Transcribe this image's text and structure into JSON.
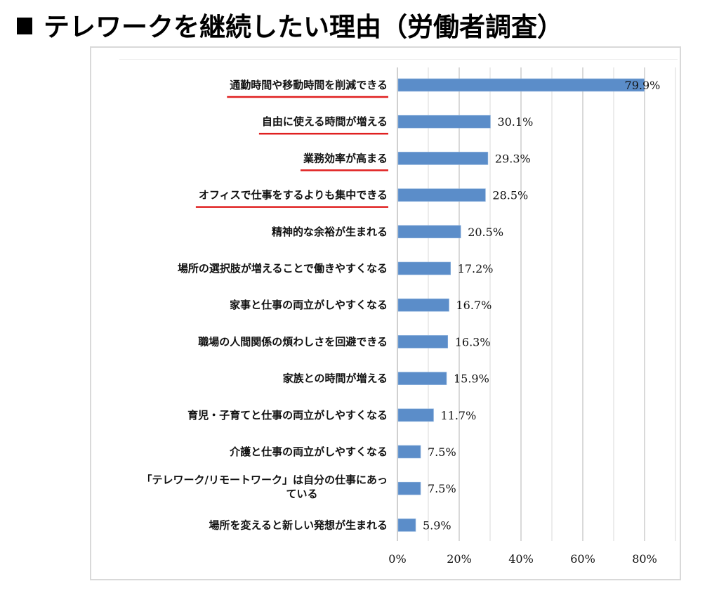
{
  "page": {
    "title": "テレワークを継続したい理由（労働者調査）"
  },
  "chart_data": {
    "type": "bar",
    "orientation": "horizontal",
    "title": "テレワークを継続したい理由（労働者調査）",
    "xlabel": "",
    "ylabel": "",
    "xlim": [
      0,
      90
    ],
    "x_ticks": [
      0,
      20,
      40,
      60,
      80
    ],
    "x_tick_labels": [
      "0%",
      "20%",
      "40%",
      "60%",
      "80%"
    ],
    "minor_gridlines_every": 10,
    "grid": true,
    "legend": "none",
    "bar_color": "#5b8dc9",
    "highlight_underline_color": "#e02020",
    "categories": [
      "通勤時間や移動時間を削減できる",
      "自由に使える時間が増える",
      "業務効率が高まる",
      "オフィスで仕事をするよりも集中できる",
      "精神的な余裕が生まれる",
      "場所の選択肢が増えることで働きやすくなる",
      "家事と仕事の両立がしやすくなる",
      "職場の人間関係の煩わしさを回避できる",
      "家族との時間が増える",
      "育児・子育てと仕事の両立がしやすくなる",
      "介護と仕事の両立がしやすくなる",
      "「テレワーク/リモートワーク」は自分の仕事にあっている",
      "場所を変えると新しい発想が生まれる"
    ],
    "category_label_lines": [
      [
        "通勤時間や移動時間を削減できる"
      ],
      [
        "自由に使える時間が増える"
      ],
      [
        "業務効率が高まる"
      ],
      [
        "オフィスで仕事をするよりも集中できる"
      ],
      [
        "精神的な余裕が生まれる"
      ],
      [
        "場所の選択肢が増えることで働きやすくなる"
      ],
      [
        "家事と仕事の両立がしやすくなる"
      ],
      [
        "職場の人間関係の煩わしさを回避できる"
      ],
      [
        "家族との時間が増える"
      ],
      [
        "育児・子育てと仕事の両立がしやすくなる"
      ],
      [
        "介護と仕事の両立がしやすくなる"
      ],
      [
        "「テレワーク/リモートワーク」は自分の仕事にあっ",
        "ている"
      ],
      [
        "場所を変えると新しい発想が生まれる"
      ]
    ],
    "values": [
      79.9,
      30.1,
      29.3,
      28.5,
      20.5,
      17.2,
      16.7,
      16.3,
      15.9,
      11.7,
      7.5,
      7.5,
      5.9
    ],
    "value_labels": [
      "79.9%",
      "30.1%",
      "29.3%",
      "28.5%",
      "20.5%",
      "17.2%",
      "16.7%",
      "16.3%",
      "15.9%",
      "11.7%",
      "7.5%",
      "7.5%",
      "5.9%"
    ],
    "highlighted": [
      true,
      true,
      true,
      true,
      false,
      false,
      false,
      false,
      false,
      false,
      false,
      false,
      false
    ]
  }
}
